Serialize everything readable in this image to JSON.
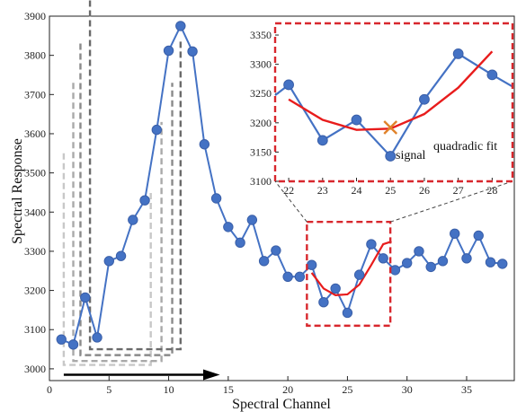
{
  "chart_data": [
    {
      "type": "line",
      "xlabel": "Spectral Channel",
      "ylabel": "Spectral Response",
      "xlim": [
        0,
        39
      ],
      "ylim": [
        2970,
        3900
      ],
      "xticks": [
        0,
        5,
        10,
        15,
        20,
        25,
        30,
        35
      ],
      "yticks": [
        3000,
        3100,
        3200,
        3300,
        3400,
        3500,
        3600,
        3700,
        3800,
        3900
      ],
      "series": [
        {
          "color": "#4472c4",
          "marker": "circle",
          "x": [
            1,
            2,
            3,
            4,
            5,
            6,
            7,
            8,
            9,
            10,
            11,
            12,
            13,
            14,
            15,
            16,
            17,
            18,
            19,
            20,
            21,
            22,
            23,
            24,
            25,
            26,
            27,
            28,
            29,
            30,
            31,
            32,
            33,
            34,
            35,
            36,
            37,
            38
          ],
          "y": [
            3075,
            3062,
            3182,
            3080,
            3275,
            3288,
            3380,
            3430,
            3610,
            3812,
            3875,
            3810,
            3573,
            3435,
            3362,
            3322,
            3380,
            3275,
            3302,
            3235,
            3235,
            3265,
            3170,
            3205,
            3143,
            3240,
            3318,
            3282,
            3252,
            3270,
            3300,
            3260,
            3275,
            3345,
            3282,
            3340,
            3272,
            3268
          ]
        },
        {
          "color": "#e81c1c",
          "type": "curve",
          "x": [
            22,
            23,
            24,
            25,
            26,
            27,
            28,
            28.7
          ],
          "y": [
            3245,
            3205,
            3188,
            3190,
            3215,
            3265,
            3318,
            3325
          ]
        }
      ],
      "annotations": {
        "arrow_color": "#000000",
        "region_box_color": "#d8272d"
      }
    },
    {
      "type": "line",
      "inset": true,
      "xlim": [
        21.6,
        28.6
      ],
      "ylim": [
        3100,
        3370
      ],
      "xticks": [
        22,
        23,
        24,
        25,
        26,
        27,
        28
      ],
      "yticks": [
        3100,
        3150,
        3200,
        3250,
        3300,
        3350
      ],
      "series": [
        {
          "color": "#4472c4",
          "marker": "circle",
          "x": [
            21.6,
            22,
            23,
            24,
            25,
            26,
            27,
            28,
            28.6
          ],
          "y": [
            3247,
            3265,
            3170,
            3205,
            3143,
            3240,
            3318,
            3282,
            3262
          ]
        },
        {
          "color": "#e81c1c",
          "type": "curve",
          "x": [
            22,
            23,
            24,
            25,
            26,
            27,
            28
          ],
          "y": [
            3240,
            3205,
            3188,
            3190,
            3215,
            3260,
            3322
          ]
        }
      ],
      "marker_x": {
        "x": 25,
        "y": 3192,
        "color": "#e0822a"
      },
      "labels": {
        "fit": "quadradic fit",
        "signal": "signal"
      },
      "frame_color": "#d8272d"
    }
  ]
}
